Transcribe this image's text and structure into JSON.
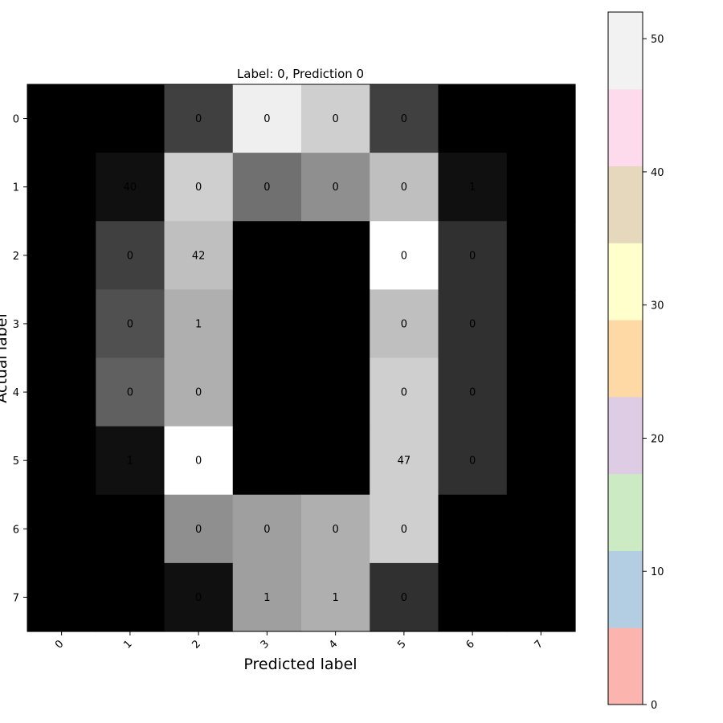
{
  "chart_data": {
    "type": "heatmap",
    "title": "Label: 0, Prediction 0",
    "xlabel": "Predicted label",
    "ylabel": "Actual label",
    "x_categories": [
      "0",
      "1",
      "2",
      "3",
      "4",
      "5",
      "6",
      "7"
    ],
    "y_categories": [
      "0",
      "1",
      "2",
      "3",
      "4",
      "5",
      "6",
      "7"
    ],
    "intensity": [
      [
        0,
        0,
        4,
        15,
        13,
        4,
        0,
        0
      ],
      [
        0,
        1,
        13,
        7,
        9,
        12,
        1,
        0
      ],
      [
        0,
        4,
        12,
        0,
        0,
        16,
        3,
        0
      ],
      [
        0,
        5,
        11,
        0,
        0,
        12,
        3,
        0
      ],
      [
        0,
        6,
        11,
        0,
        0,
        13,
        3,
        0
      ],
      [
        0,
        1,
        16,
        0,
        0,
        13,
        3,
        0
      ],
      [
        0,
        0,
        9,
        10,
        11,
        13,
        0,
        0
      ],
      [
        0,
        0,
        1,
        10,
        11,
        3,
        0,
        0
      ]
    ],
    "intensity_max": 16,
    "cell_labels": [
      [
        "",
        "",
        "0",
        "0",
        "0",
        "0",
        "",
        ""
      ],
      [
        "",
        "40",
        "0",
        "0",
        "0",
        "0",
        "1",
        ""
      ],
      [
        "",
        "0",
        "42",
        "",
        "",
        "0",
        "0",
        ""
      ],
      [
        "",
        "0",
        "1",
        "",
        "",
        "0",
        "0",
        ""
      ],
      [
        "",
        "0",
        "0",
        "",
        "",
        "0",
        "0",
        ""
      ],
      [
        "",
        "1",
        "0",
        "",
        "",
        "47",
        "0",
        ""
      ],
      [
        "",
        "",
        "0",
        "0",
        "0",
        "0",
        "",
        ""
      ],
      [
        "",
        "",
        "0",
        "1",
        "1",
        "0",
        "",
        ""
      ]
    ],
    "colorbar": {
      "colormap": "Pastel1",
      "colors": [
        "#fbb4ae",
        "#b3cde3",
        "#ccebc5",
        "#decbe4",
        "#fed9a6",
        "#ffffcc",
        "#e5d8bd",
        "#fddaec",
        "#f2f2f2"
      ],
      "min": 0,
      "max": 52,
      "ticks": [
        0,
        10,
        20,
        30,
        40,
        50
      ]
    }
  }
}
